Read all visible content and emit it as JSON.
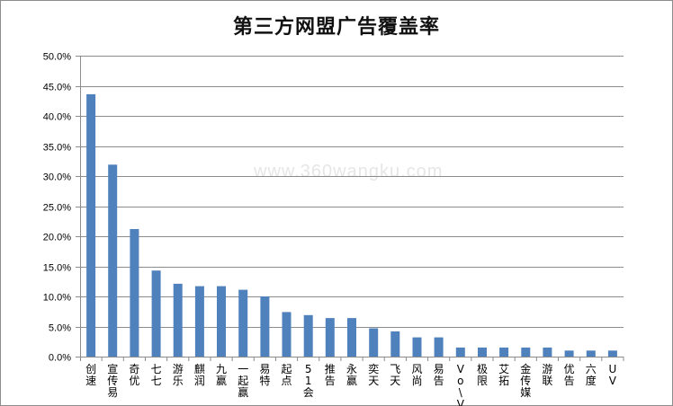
{
  "chart_data": {
    "type": "bar",
    "title": "第三方网盟广告覆盖率",
    "watermark": "www.360wangku.com",
    "categories": [
      "创速",
      "宣传易",
      "奇优",
      "七七",
      "游乐",
      "麒润",
      "九赢",
      "一起赢",
      "易特",
      "起点",
      "51会",
      "推告",
      "永赢",
      "奕天",
      "飞天",
      "风尚",
      "易告",
      "Vo\\Vo",
      "极限",
      "艾拓",
      "金传媒",
      "游联",
      "优告",
      "六度",
      "UV"
    ],
    "values": [
      43.6,
      31.9,
      21.2,
      14.3,
      12.1,
      11.7,
      11.7,
      11.1,
      10.0,
      7.4,
      6.9,
      6.4,
      6.4,
      4.7,
      4.2,
      3.2,
      3.2,
      1.5,
      1.5,
      1.5,
      1.5,
      1.5,
      1.0,
      1.0,
      1.0
    ],
    "ylim": [
      0,
      50
    ],
    "yticks": [
      "0.0%",
      "5.0%",
      "10.0%",
      "15.0%",
      "20.0%",
      "25.0%",
      "30.0%",
      "35.0%",
      "40.0%",
      "45.0%",
      "50.0%"
    ],
    "grid": true,
    "bar_color": "#4f81bd"
  }
}
